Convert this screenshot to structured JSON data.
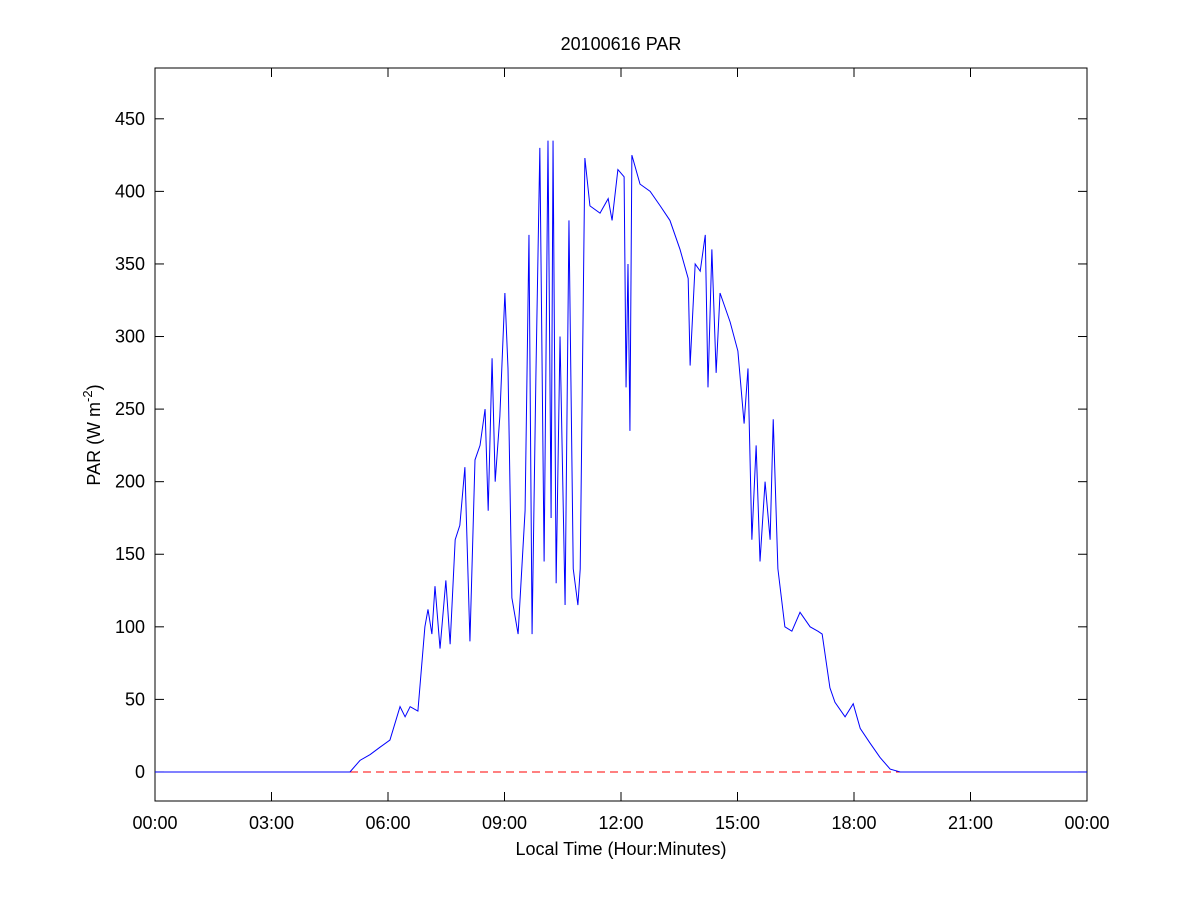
{
  "chart_data": {
    "type": "line",
    "title": "20100616 PAR",
    "xlabel": "Local Time (Hour:Minutes)",
    "ylabel": {
      "text": "PAR (W m",
      "sup": "-2",
      "tail": ")"
    },
    "x": [
      0,
      1,
      2,
      3,
      4,
      5.02,
      5.28,
      5.54,
      5.79,
      6.05,
      6.31,
      6.44,
      6.57,
      6.77,
      6.95,
      7.03,
      7.13,
      7.21,
      7.34,
      7.49,
      7.6,
      7.73,
      7.85,
      7.98,
      8.11,
      8.24,
      8.37,
      8.5,
      8.58,
      8.68,
      8.76,
      8.88,
      9.01,
      9.09,
      9.19,
      9.35,
      9.53,
      9.63,
      9.71,
      9.81,
      9.91,
      10.02,
      10.12,
      10.2,
      10.25,
      10.33,
      10.43,
      10.56,
      10.66,
      10.77,
      10.89,
      10.95,
      11.07,
      11.2,
      11.46,
      11.67,
      11.77,
      11.92,
      12.08,
      12.13,
      12.18,
      12.23,
      12.28,
      12.49,
      12.75,
      13.01,
      13.26,
      13.52,
      13.73,
      13.78,
      13.91,
      14.04,
      14.17,
      14.24,
      14.34,
      14.45,
      14.55,
      14.68,
      14.81,
      15.01,
      15.17,
      15.27,
      15.37,
      15.48,
      15.58,
      15.71,
      15.84,
      15.92,
      16.04,
      16.22,
      16.4,
      16.61,
      16.87,
      17.07,
      17.18,
      17.38,
      17.51,
      17.77,
      17.98,
      18.16,
      18.41,
      18.67,
      18.93,
      19.19,
      20,
      21,
      22,
      23,
      24
    ],
    "series": [
      {
        "color": "#0000ff",
        "values": [
          0,
          0,
          0,
          0,
          0,
          0,
          8,
          12,
          17,
          22,
          45,
          38,
          45,
          42,
          100,
          112,
          95,
          128,
          85,
          132,
          88,
          160,
          170,
          210,
          90,
          215,
          225,
          250,
          180,
          285,
          200,
          245,
          330,
          278,
          120,
          95,
          180,
          370,
          95,
          275,
          430,
          145,
          435,
          175,
          435,
          130,
          300,
          115,
          380,
          140,
          115,
          140,
          423,
          390,
          385,
          395,
          380,
          415,
          410,
          265,
          350,
          235,
          425,
          405,
          400,
          390,
          380,
          360,
          340,
          280,
          350,
          345,
          370,
          265,
          360,
          275,
          330,
          320,
          310,
          290,
          240,
          278,
          160,
          225,
          145,
          200,
          160,
          243,
          140,
          100,
          97,
          110,
          100,
          97,
          95,
          58,
          48,
          38,
          47,
          30,
          20,
          10,
          2,
          0,
          0,
          0,
          0,
          0,
          0
        ]
      }
    ],
    "hlines": [
      {
        "value": 0,
        "color": "#ff0000",
        "style": "dashed"
      }
    ],
    "xlim": [
      0,
      24
    ],
    "xticks": [
      {
        "value": 0,
        "label": "00:00"
      },
      {
        "value": 3,
        "label": "03:00"
      },
      {
        "value": 6,
        "label": "06:00"
      },
      {
        "value": 9,
        "label": "09:00"
      },
      {
        "value": 12,
        "label": "12:00"
      },
      {
        "value": 15,
        "label": "15:00"
      },
      {
        "value": 18,
        "label": "18:00"
      },
      {
        "value": 21,
        "label": "21:00"
      },
      {
        "value": 24,
        "label": "00:00"
      }
    ],
    "ylim": [
      -20,
      485
    ],
    "yticks": [
      0,
      50,
      100,
      150,
      200,
      250,
      300,
      350,
      400,
      450
    ],
    "grid": false
  }
}
